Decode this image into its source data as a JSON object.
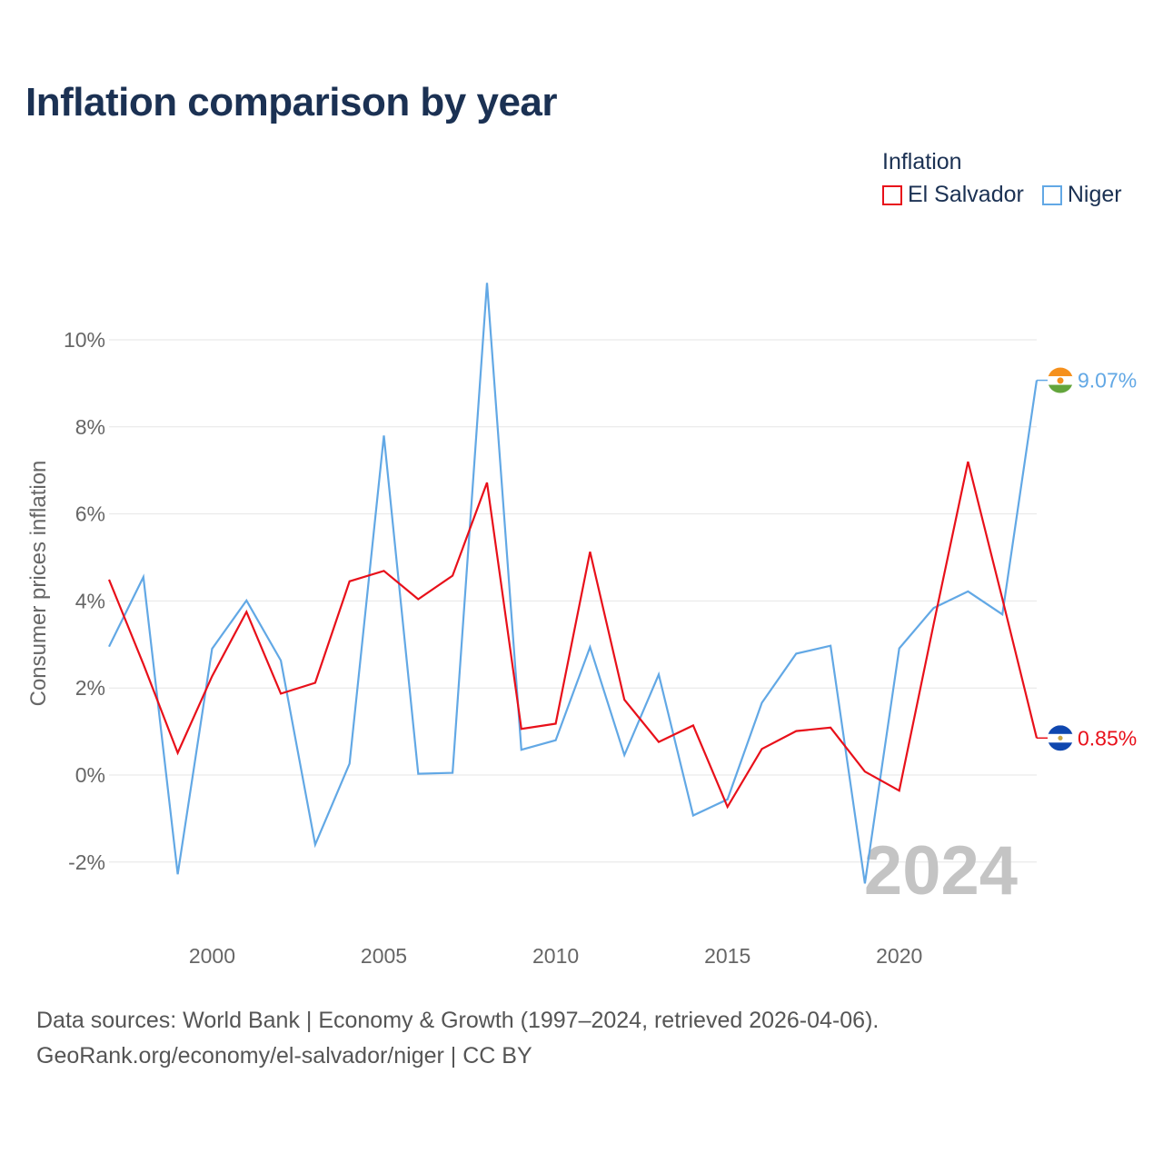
{
  "title": "Inflation comparison by year",
  "legend": {
    "title": "Inflation",
    "items": [
      {
        "name": "El Salvador",
        "color": "#e8101a"
      },
      {
        "name": "Niger",
        "color": "#62a8e5"
      }
    ]
  },
  "chart_data": {
    "type": "line",
    "title": "Inflation comparison by year",
    "xlabel": "",
    "ylabel": "Consumer prices inflation",
    "xlim": [
      1997,
      2024
    ],
    "ylim": [
      -2,
      10
    ],
    "x_ticks": [
      2000,
      2005,
      2010,
      2015,
      2020
    ],
    "y_ticks": [
      -2,
      0,
      2,
      4,
      6,
      8,
      10
    ],
    "y_tick_labels": [
      "-2%",
      "0%",
      "2%",
      "4%",
      "6%",
      "8%",
      "10%"
    ],
    "grid": true,
    "x": [
      1997,
      1998,
      1999,
      2000,
      2001,
      2002,
      2003,
      2004,
      2005,
      2006,
      2007,
      2008,
      2009,
      2010,
      2011,
      2012,
      2013,
      2014,
      2015,
      2016,
      2017,
      2018,
      2019,
      2020,
      2021,
      2022,
      2023,
      2024
    ],
    "series": [
      {
        "name": "El Salvador",
        "color": "#e8101a",
        "end_label": "0.85%",
        "values": [
          4.49,
          2.55,
          0.51,
          2.27,
          3.75,
          1.87,
          2.12,
          4.45,
          4.69,
          4.04,
          4.58,
          6.72,
          1.06,
          1.18,
          5.13,
          1.73,
          0.76,
          1.14,
          -0.73,
          0.6,
          1.01,
          1.09,
          0.08,
          -0.36,
          3.47,
          7.2,
          4.05,
          0.85
        ]
      },
      {
        "name": "Niger",
        "color": "#62a8e5",
        "end_label": "9.07%",
        "values": [
          2.95,
          4.55,
          -2.28,
          2.9,
          4.01,
          2.63,
          -1.6,
          0.26,
          7.8,
          0.03,
          0.05,
          11.31,
          0.58,
          0.8,
          2.94,
          0.46,
          2.31,
          -0.93,
          -0.56,
          1.66,
          2.79,
          2.97,
          -2.49,
          2.91,
          3.84,
          4.22,
          3.69,
          9.07
        ]
      }
    ],
    "annotation": "2024"
  },
  "source": {
    "line1": "Data sources: World Bank | Economy & Growth (1997–2024, retrieved 2026-04-06).",
    "line2": "GeoRank.org/economy/el-salvador/niger | CC BY"
  }
}
